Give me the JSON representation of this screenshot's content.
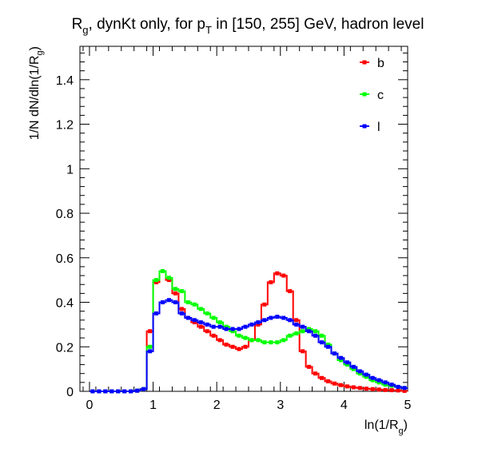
{
  "chart_data": {
    "type": "line",
    "style": "step-histogram",
    "title": "R_g, dynKt only, for p_T in [150, 255] GeV, hadron level",
    "title_parts": {
      "r": "R",
      "g": "g",
      "mid": ", dynKt only, for p",
      "t": "T",
      "rest": " in [150, 255] GeV, hadron level"
    },
    "xlabel": "ln(1/R_g)",
    "xlabel_parts": {
      "pre": "ln(1/R",
      "sub": "g",
      "post": ")"
    },
    "ylabel": "1/N dN/dln(1/R_g)",
    "ylabel_parts": {
      "pre": "1/N dN/dln(1/R",
      "sub": "g",
      "post": ")"
    },
    "xlim": [
      -0.15,
      5.0
    ],
    "ylim": [
      0,
      1.55
    ],
    "xticks": [
      0,
      1,
      2,
      3,
      4,
      5
    ],
    "yticks": [
      0,
      0.2,
      0.4,
      0.6,
      0.8,
      1.0,
      1.2,
      1.4
    ],
    "ytick_labels": [
      "0",
      "0.2",
      "0.4",
      "0.6",
      "0.8",
      "1",
      "1.2",
      "1.4"
    ],
    "legend_position": "top-right",
    "grid": false,
    "bin_width": 0.1,
    "bin_start": 0.0,
    "series": [
      {
        "name": "b",
        "color": "#ff0000",
        "values": [
          0,
          0,
          0,
          0,
          0,
          0,
          0,
          0.003,
          0.01,
          0.27,
          0.49,
          0.54,
          0.5,
          0.44,
          0.37,
          0.33,
          0.31,
          0.29,
          0.27,
          0.25,
          0.23,
          0.21,
          0.2,
          0.19,
          0.2,
          0.23,
          0.3,
          0.39,
          0.49,
          0.53,
          0.52,
          0.45,
          0.32,
          0.18,
          0.11,
          0.08,
          0.06,
          0.045,
          0.035,
          0.028,
          0.022,
          0.018,
          0.015,
          0.012,
          0.01,
          0.008,
          0.006,
          0.005,
          0.004,
          0.002
        ]
      },
      {
        "name": "c",
        "color": "#00ff00",
        "values": [
          0,
          0,
          0,
          0,
          0,
          0,
          0,
          0.003,
          0.01,
          0.2,
          0.5,
          0.54,
          0.51,
          0.46,
          0.45,
          0.4,
          0.39,
          0.37,
          0.35,
          0.33,
          0.31,
          0.29,
          0.27,
          0.25,
          0.24,
          0.23,
          0.23,
          0.22,
          0.22,
          0.22,
          0.23,
          0.25,
          0.26,
          0.27,
          0.28,
          0.27,
          0.25,
          0.21,
          0.17,
          0.14,
          0.12,
          0.1,
          0.08,
          0.065,
          0.05,
          0.04,
          0.03,
          0.025,
          0.02,
          0.015
        ]
      },
      {
        "name": "l",
        "color": "#0000ff",
        "values": [
          0,
          0,
          0,
          0,
          0,
          0,
          0,
          0.003,
          0.01,
          0.18,
          0.35,
          0.4,
          0.41,
          0.4,
          0.35,
          0.33,
          0.32,
          0.31,
          0.3,
          0.29,
          0.29,
          0.28,
          0.28,
          0.28,
          0.29,
          0.3,
          0.31,
          0.32,
          0.33,
          0.335,
          0.33,
          0.32,
          0.3,
          0.29,
          0.27,
          0.25,
          0.22,
          0.2,
          0.17,
          0.15,
          0.13,
          0.11,
          0.09,
          0.075,
          0.06,
          0.05,
          0.04,
          0.03,
          0.02,
          0.015
        ]
      }
    ]
  }
}
